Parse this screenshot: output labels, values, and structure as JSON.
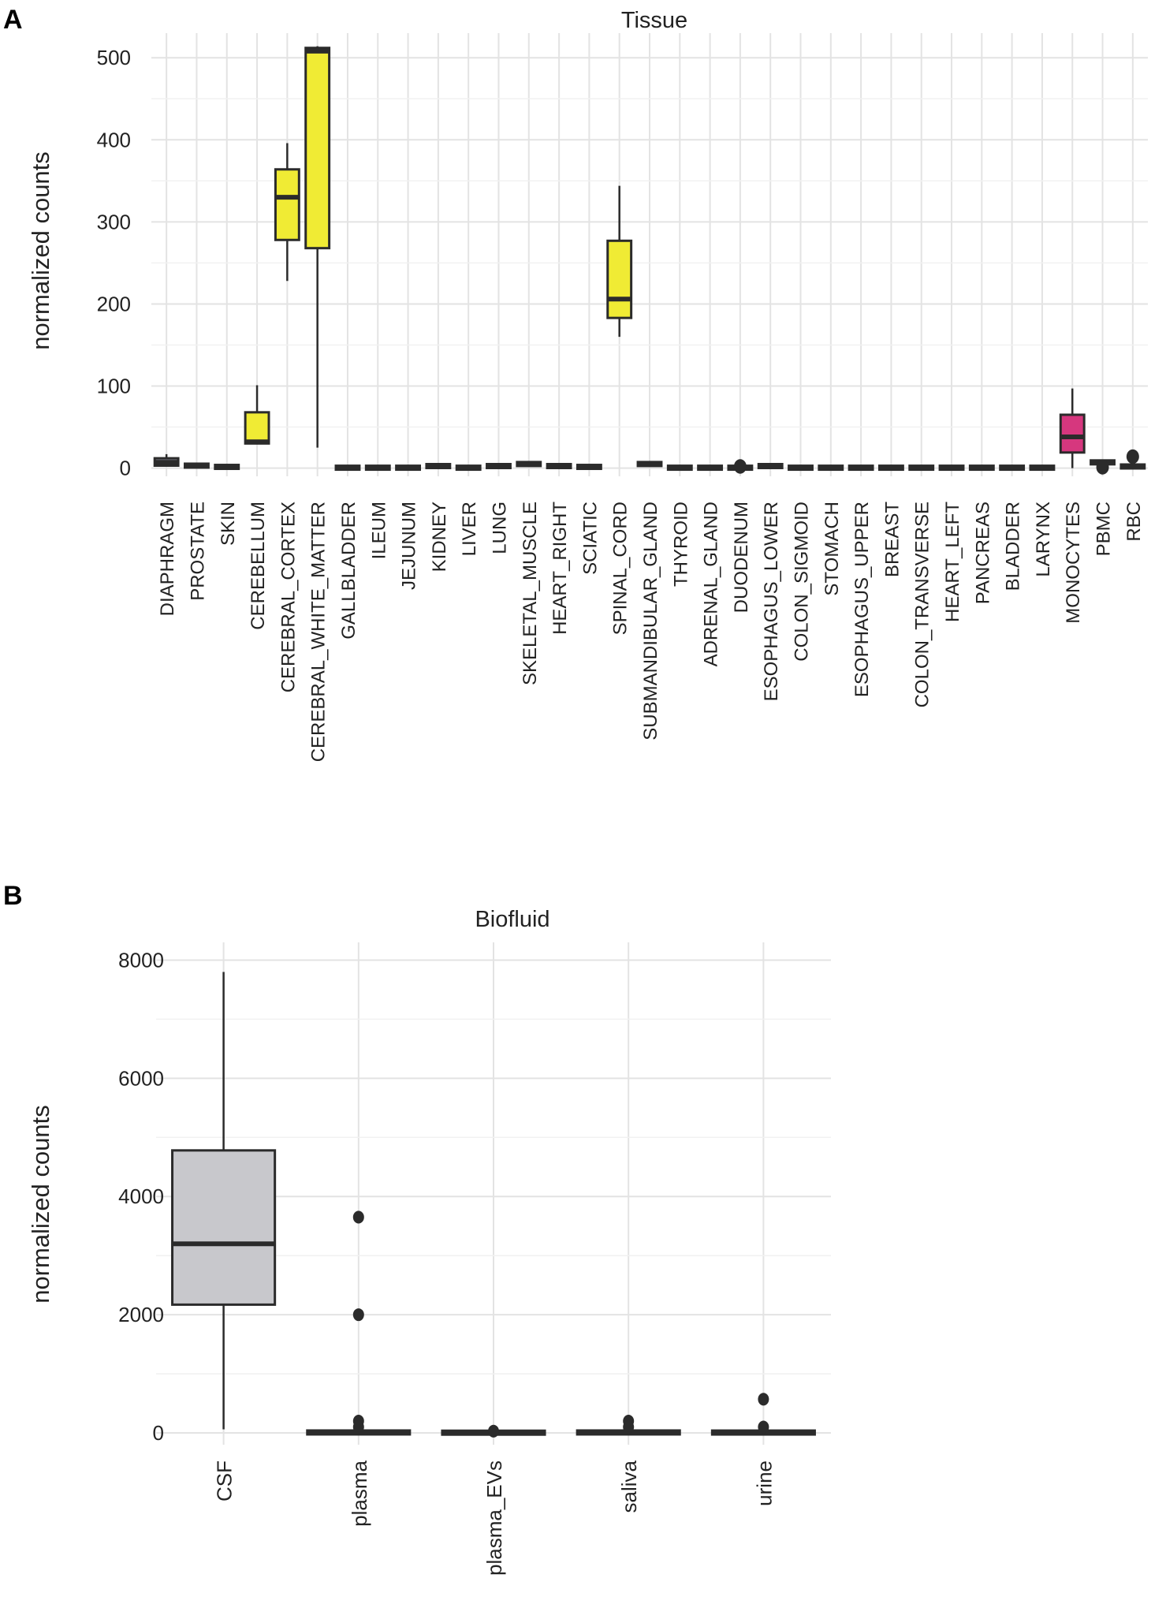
{
  "chart_data": [
    {
      "panel": "A",
      "type": "box",
      "title": "Tissue",
      "xlabel": "",
      "ylabel": "normalized counts",
      "ylim": [
        -10,
        530
      ],
      "yticks": [
        0,
        100,
        200,
        300,
        400,
        500
      ],
      "colors": {
        "brain": "#f0eb34",
        "immune": "#d6377e",
        "default": "#8a8a99"
      },
      "categories": [
        "DIAPHRAGM",
        "PROSTATE",
        "SKIN",
        "CEREBELLUM",
        "CEREBRAL_CORTEX",
        "CEREBRAL_WHITE_MATTER",
        "GALLBLADDER",
        "ILEUM",
        "JEJUNUM",
        "KIDNEY",
        "LIVER",
        "LUNG",
        "SKELETAL_MUSCLE",
        "HEART_RIGHT",
        "SCIATIC",
        "SPINAL_CORD",
        "SUBMANDIBULAR_GLAND",
        "THYROID",
        "ADRENAL_GLAND",
        "DUODENUM",
        "ESOPHAGUS_LOWER",
        "COLON_SIGMOID",
        "STOMACH",
        "ESOPHAGUS_UPPER",
        "BREAST",
        "COLON_TRANSVERSE",
        "HEART_LEFT",
        "PANCREAS",
        "BLADDER",
        "LARYNX",
        "MONOCYTES",
        "PBMC",
        "RBC"
      ],
      "boxes": [
        {
          "min": 2,
          "q1": 3,
          "median": 7,
          "q3": 12,
          "max": 17,
          "color": "default",
          "outliers": []
        },
        {
          "min": 1,
          "q1": 2,
          "median": 3,
          "q3": 4,
          "max": 4,
          "color": "default",
          "outliers": []
        },
        {
          "min": 0,
          "q1": 0,
          "median": 1,
          "q3": 3,
          "max": 3,
          "color": "default",
          "outliers": []
        },
        {
          "min": 29,
          "q1": 30,
          "median": 32,
          "q3": 68,
          "max": 101,
          "color": "brain",
          "outliers": []
        },
        {
          "min": 228,
          "q1": 278,
          "median": 330,
          "q3": 364,
          "max": 396,
          "color": "brain",
          "outliers": []
        },
        {
          "min": 25,
          "q1": 268,
          "median": 508,
          "q3": 512,
          "max": 514,
          "color": "brain",
          "outliers": []
        },
        {
          "min": 0,
          "q1": 0,
          "median": 1,
          "q3": 1,
          "max": 1,
          "color": "default",
          "outliers": []
        },
        {
          "min": 0,
          "q1": 0,
          "median": 1,
          "q3": 1,
          "max": 1,
          "color": "default",
          "outliers": []
        },
        {
          "min": 0,
          "q1": 0,
          "median": 1,
          "q3": 1,
          "max": 1,
          "color": "default",
          "outliers": []
        },
        {
          "min": 2,
          "q1": 2,
          "median": 3,
          "q3": 3,
          "max": 3,
          "color": "default",
          "outliers": []
        },
        {
          "min": 0,
          "q1": 0,
          "median": 1,
          "q3": 1,
          "max": 1,
          "color": "default",
          "outliers": []
        },
        {
          "min": 2,
          "q1": 2,
          "median": 3,
          "q3": 3,
          "max": 3,
          "color": "default",
          "outliers": []
        },
        {
          "min": 4,
          "q1": 4,
          "median": 5,
          "q3": 6,
          "max": 6,
          "color": "default",
          "outliers": []
        },
        {
          "min": 2,
          "q1": 2,
          "median": 3,
          "q3": 3,
          "max": 3,
          "color": "default",
          "outliers": []
        },
        {
          "min": 1,
          "q1": 1,
          "median": 2,
          "q3": 2,
          "max": 2,
          "color": "default",
          "outliers": []
        },
        {
          "min": 160,
          "q1": 183,
          "median": 206,
          "q3": 277,
          "max": 344,
          "color": "brain",
          "outliers": []
        },
        {
          "min": 3,
          "q1": 4,
          "median": 5,
          "q3": 6,
          "max": 6,
          "color": "default",
          "outliers": []
        },
        {
          "min": 0,
          "q1": 0,
          "median": 1,
          "q3": 1,
          "max": 1,
          "color": "default",
          "outliers": []
        },
        {
          "min": 0,
          "q1": 0,
          "median": 1,
          "q3": 1,
          "max": 1,
          "color": "default",
          "outliers": []
        },
        {
          "min": 0,
          "q1": 0,
          "median": 1,
          "q3": 1,
          "max": 1,
          "color": "default",
          "outliers": [
            2
          ]
        },
        {
          "min": 2,
          "q1": 2,
          "median": 3,
          "q3": 3,
          "max": 3,
          "color": "default",
          "outliers": []
        },
        {
          "min": 0,
          "q1": 0,
          "median": 1,
          "q3": 1,
          "max": 1,
          "color": "default",
          "outliers": []
        },
        {
          "min": 0,
          "q1": 0,
          "median": 1,
          "q3": 1,
          "max": 1,
          "color": "default",
          "outliers": []
        },
        {
          "min": 0,
          "q1": 0,
          "median": 1,
          "q3": 1,
          "max": 1,
          "color": "default",
          "outliers": []
        },
        {
          "min": 0,
          "q1": 0,
          "median": 1,
          "q3": 1,
          "max": 1,
          "color": "default",
          "outliers": []
        },
        {
          "min": 0,
          "q1": 0,
          "median": 1,
          "q3": 1,
          "max": 1,
          "color": "default",
          "outliers": []
        },
        {
          "min": 0,
          "q1": 0,
          "median": 1,
          "q3": 1,
          "max": 1,
          "color": "default",
          "outliers": []
        },
        {
          "min": 0,
          "q1": 0,
          "median": 1,
          "q3": 1,
          "max": 1,
          "color": "default",
          "outliers": []
        },
        {
          "min": 0,
          "q1": 0,
          "median": 1,
          "q3": 1,
          "max": 1,
          "color": "default",
          "outliers": []
        },
        {
          "min": 0,
          "q1": 0,
          "median": 1,
          "q3": 1,
          "max": 1,
          "color": "default",
          "outliers": []
        },
        {
          "min": 0,
          "q1": 19,
          "median": 38,
          "q3": 65,
          "max": 97,
          "color": "immune",
          "outliers": []
        },
        {
          "min": 5,
          "q1": 6,
          "median": 7,
          "q3": 8,
          "max": 8,
          "color": "default",
          "outliers": [
            1
          ]
        },
        {
          "min": 0,
          "q1": 1,
          "median": 2,
          "q3": 3,
          "max": 4,
          "color": "default",
          "outliers": [
            14
          ]
        }
      ]
    },
    {
      "panel": "B",
      "type": "box",
      "title": "Biofluid",
      "xlabel": "",
      "ylabel": "normalized counts",
      "ylim": [
        -200,
        8300
      ],
      "yticks": [
        0,
        2000,
        4000,
        6000,
        8000
      ],
      "colors": {
        "box": "#c8c8cc"
      },
      "categories": [
        "CSF",
        "plasma",
        "plasma_EVs",
        "saliva",
        "urine"
      ],
      "boxes": [
        {
          "min": 60,
          "q1": 2170,
          "median": 3200,
          "q3": 4780,
          "max": 7800,
          "outliers": []
        },
        {
          "min": 0,
          "q1": 0,
          "median": 5,
          "q3": 15,
          "max": 20,
          "outliers": [
            3650,
            2000,
            200,
            100
          ]
        },
        {
          "min": 0,
          "q1": 0,
          "median": 3,
          "q3": 8,
          "max": 10,
          "outliers": [
            30
          ]
        },
        {
          "min": 0,
          "q1": 0,
          "median": 5,
          "q3": 15,
          "max": 20,
          "outliers": [
            200,
            100
          ]
        },
        {
          "min": 0,
          "q1": 0,
          "median": 5,
          "q3": 12,
          "max": 15,
          "outliers": [
            570,
            100
          ]
        }
      ]
    }
  ],
  "panel_labels": {
    "a": "A",
    "b": "B"
  }
}
